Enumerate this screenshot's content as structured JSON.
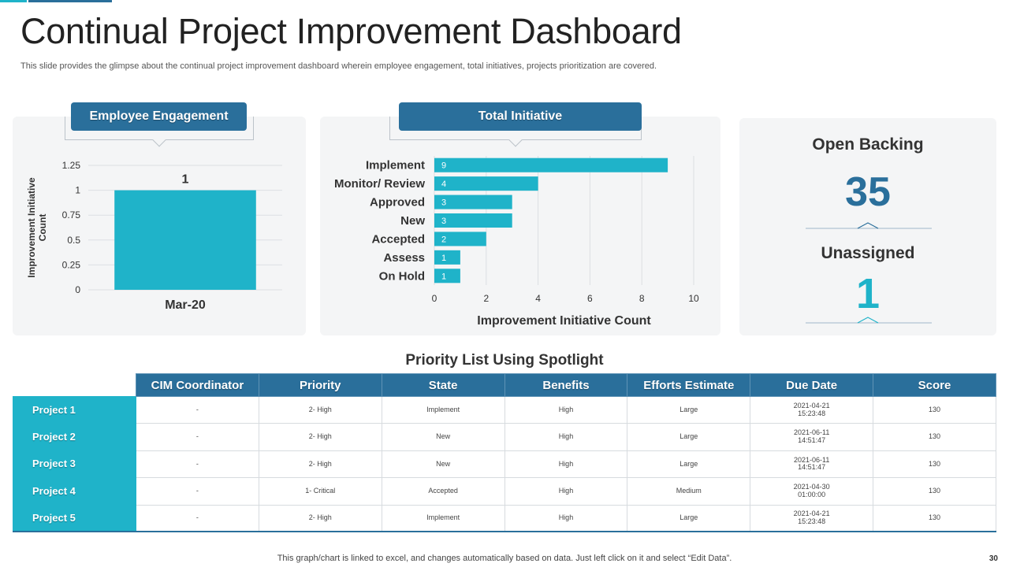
{
  "slide": {
    "title": "Continual Project Improvement Dashboard",
    "subtitle": "This slide provides the glimpse about the continual project improvement dashboard wherein employee engagement, total initiatives, projects prioritization are covered.",
    "footnote": "This graph/chart is linked to excel,  and changes automatically based on data. Just left click on it and select “Edit Data”.",
    "page_number": "30"
  },
  "colors": {
    "teal": "#1fb3c9",
    "blue": "#2a6f9b",
    "panel": "#f4f5f6"
  },
  "employee_engagement": {
    "label": "Employee Engagement"
  },
  "total_initiative": {
    "label": "Total Initiative"
  },
  "open_backing": {
    "label": "Open Backing",
    "value": "35"
  },
  "unassigned": {
    "label": "Unassigned",
    "value": "1"
  },
  "chart_data": [
    {
      "type": "bar",
      "orientation": "vertical",
      "categories": [
        "Mar-20"
      ],
      "values": [
        1
      ],
      "data_labels": [
        "1"
      ],
      "ylabel": "Improvement Initiative Count",
      "ylim": [
        0,
        1.25
      ],
      "yticks": [
        0,
        0.25,
        0.5,
        0.75,
        1,
        1.25
      ],
      "ytick_labels": [
        "0",
        "0.25",
        "0.5",
        "0.75",
        "1",
        "1.25"
      ],
      "grid": "horizontal",
      "color": "#1fb3c9"
    },
    {
      "type": "bar",
      "orientation": "horizontal",
      "categories": [
        "Implement",
        "Monitor/ Review",
        "Approved",
        "New",
        "Accepted",
        "Assess",
        "On Hold"
      ],
      "values": [
        9,
        4,
        3,
        3,
        2,
        1,
        1
      ],
      "data_labels": [
        "9",
        "4",
        "3",
        "3",
        "2",
        "1",
        "1"
      ],
      "xlabel": "Improvement Initiative Count",
      "xlim": [
        0,
        10
      ],
      "xticks": [
        0,
        2,
        4,
        6,
        8,
        10
      ],
      "xtick_labels": [
        "0",
        "2",
        "4",
        "6",
        "8",
        "10"
      ],
      "grid": "vertical",
      "color": "#1fb3c9"
    },
    {
      "type": "table",
      "title": "Priority List Using Spotlight",
      "columns": [
        "CIM Coordinator",
        "Priority",
        "State",
        "Benefits",
        "Efforts Estimate",
        "Due Date",
        "Score"
      ],
      "rows": [
        {
          "project": "Project 1",
          "cells": [
            "-",
            "2- High",
            "Implement",
            "High",
            "Large",
            "2021-04-21",
            "130"
          ],
          "time": "15:23:48"
        },
        {
          "project": "Project 2",
          "cells": [
            "-",
            "2- High",
            "New",
            "High",
            "Large",
            "2021-06-11",
            "130"
          ],
          "time": "14:51:47"
        },
        {
          "project": "Project 3",
          "cells": [
            "-",
            "2- High",
            "New",
            "High",
            "Large",
            "2021-06-11",
            "130"
          ],
          "time": "14:51:47"
        },
        {
          "project": "Project 4",
          "cells": [
            "-",
            "1- Critical",
            "Accepted",
            "High",
            "Medium",
            "2021-04-30",
            "130"
          ],
          "time": "01:00:00"
        },
        {
          "project": "Project 5",
          "cells": [
            "-",
            "2- High",
            "Implement",
            "High",
            "Large",
            "2021-04-21",
            "130"
          ],
          "time": "15:23:48"
        }
      ]
    }
  ]
}
